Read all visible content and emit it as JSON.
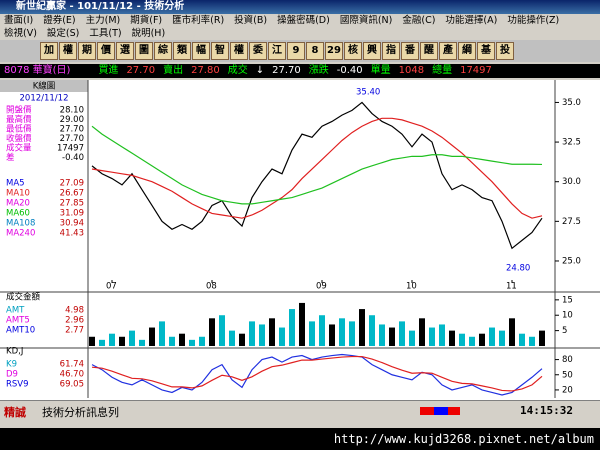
{
  "title_bar": "新世紀贏家 - 101/11/12 - 技術分析",
  "menu": [
    [
      "畫面(I)",
      "證券(E)",
      "主力(M)",
      "期貨(F)",
      "匯市利率(R)",
      "投資(B)",
      "操盤密碼(D)",
      "國際資訊(N)",
      "金融(C)",
      "功能選擇(A)",
      "功能操作(Z)"
    ],
    [
      "檢視(V)",
      "設定(S)",
      "工具(T)",
      "說明(H)"
    ]
  ],
  "toolbar": [
    "加",
    "權",
    "期",
    "價",
    "選",
    "圖",
    "綜",
    "類",
    "幅",
    "智",
    "權",
    "委",
    "江",
    "9",
    "8",
    "29",
    "核",
    "興",
    "指",
    "番",
    "醒",
    "產",
    "綱",
    "基",
    "投"
  ],
  "quote": {
    "symbol": "8078 華寶(日)",
    "bid_label": "買進",
    "bid": "27.70",
    "ask_label": "賣出",
    "ask": "27.80",
    "last_label": "成交",
    "arrow": "↓",
    "last": "27.70",
    "change_label": "漲跌",
    "change": "-0.40",
    "lot_label": "單量",
    "lot": "1048",
    "vol_label": "總量",
    "vol": "17497"
  },
  "info_panel": {
    "title": "K線圖",
    "date": "2012/11/12",
    "rows": [
      [
        "開盤價",
        "28.10"
      ],
      [
        "最高價",
        "29.00"
      ],
      [
        "最低價",
        "27.70"
      ],
      [
        "收盤價",
        "27.70"
      ],
      [
        "成交量",
        "17497"
      ],
      [
        "差",
        "-0.40"
      ]
    ],
    "ma": [
      [
        "MA5",
        "27.09"
      ],
      [
        "MA10",
        "26.67"
      ],
      [
        "MA20",
        "27.85"
      ],
      [
        "MA60",
        "31.09"
      ],
      [
        "MA108",
        "30.94"
      ],
      [
        "MA240",
        "41.43"
      ]
    ]
  },
  "chart_data": [
    {
      "type": "line",
      "categories": [
        null,
        null,
        "07",
        null,
        null,
        null,
        null,
        null,
        null,
        null,
        null,
        null,
        "08",
        null,
        null,
        null,
        null,
        null,
        null,
        null,
        null,
        null,
        null,
        "09",
        null,
        null,
        null,
        null,
        null,
        null,
        null,
        null,
        "10",
        null,
        null,
        null,
        null,
        null,
        null,
        null,
        null,
        null,
        "11",
        null,
        null,
        null
      ],
      "series": [
        {
          "color": "#000000",
          "values": [
            31.0,
            30.5,
            30.2,
            29.8,
            30.5,
            29.5,
            28.5,
            27.5,
            27.0,
            27.3,
            27.0,
            27.5,
            28.5,
            28.8,
            27.8,
            27.2,
            29.0,
            30.0,
            30.8,
            30.5,
            32.0,
            33.0,
            32.8,
            33.5,
            33.8,
            34.2,
            34.5,
            35.0,
            34.3,
            33.8,
            33.5,
            33.0,
            32.2,
            33.0,
            32.5,
            30.5,
            29.5,
            29.8,
            29.5,
            29.0,
            28.8,
            27.5,
            25.8,
            26.3,
            26.8,
            27.7
          ]
        },
        {
          "color": "#e02020",
          "values": [
            30.8,
            30.7,
            30.6,
            30.5,
            30.4,
            30.2,
            30.0,
            29.7,
            29.4,
            29.0,
            28.6,
            28.3,
            28.0,
            27.9,
            27.8,
            27.7,
            27.9,
            28.2,
            28.6,
            29.0,
            29.5,
            30.2,
            30.8,
            31.4,
            32.0,
            32.6,
            33.1,
            33.5,
            33.8,
            34.0,
            34.0,
            33.9,
            33.7,
            33.5,
            33.2,
            32.8,
            32.3,
            31.8,
            31.2,
            30.6,
            30.0,
            29.3,
            28.6,
            28.0,
            27.7,
            27.85
          ]
        },
        {
          "color": "#20c020",
          "values": [
            33.5,
            33.0,
            32.6,
            32.2,
            31.8,
            31.4,
            31.0,
            30.6,
            30.2,
            29.8,
            29.5,
            29.2,
            29.0,
            28.8,
            28.7,
            28.6,
            28.6,
            28.7,
            28.8,
            28.9,
            29.0,
            29.2,
            29.4,
            29.6,
            29.9,
            30.2,
            30.5,
            30.8,
            31.0,
            31.2,
            31.4,
            31.5,
            31.6,
            31.6,
            31.7,
            31.7,
            31.6,
            31.6,
            31.5,
            31.4,
            31.3,
            31.2,
            31.1,
            31.1,
            31.1,
            31.09
          ]
        }
      ],
      "ylim": [
        23.8,
        36.1
      ],
      "yticks": [
        {
          "value": 25,
          "label": "25.0"
        },
        {
          "value": 27.5,
          "label": "27.5"
        },
        {
          "value": 30,
          "label": "30.0"
        },
        {
          "value": 32.5,
          "label": "32.5"
        },
        {
          "value": 35,
          "label": "35.0"
        }
      ],
      "annotations": [
        {
          "text": "35.40",
          "value": 35.4,
          "index": 27
        },
        {
          "text": "24.80",
          "value": 24.8,
          "index": 42
        }
      ]
    },
    {
      "type": "bar",
      "label": "成交金額",
      "legend": [
        [
          "AMT",
          "4.98"
        ],
        [
          "AMT5",
          "2.96"
        ],
        [
          "AMT10",
          "2.77"
        ]
      ],
      "color": "#00b8c8",
      "values": [
        3,
        2,
        4,
        3,
        5,
        2,
        6,
        8,
        3,
        4,
        2,
        3,
        9,
        10,
        5,
        4,
        8,
        7,
        9,
        6,
        12,
        14,
        8,
        10,
        7,
        9,
        8,
        12,
        10,
        7,
        6,
        8,
        5,
        9,
        6,
        7,
        5,
        4,
        3,
        4,
        6,
        5,
        9,
        4,
        3,
        5
      ],
      "ylim": [
        0,
        15.6
      ],
      "yticks": [
        5,
        10,
        15
      ]
    },
    {
      "type": "line",
      "label": "KD,J",
      "legend": [
        [
          "K9",
          "61.74"
        ],
        [
          "D9",
          "46.70"
        ],
        [
          "RSV9",
          "69.05"
        ]
      ],
      "series": [
        {
          "color": "#2030e0",
          "values": [
            70,
            60,
            45,
            35,
            30,
            40,
            30,
            20,
            15,
            25,
            20,
            35,
            60,
            70,
            40,
            25,
            60,
            80,
            85,
            75,
            85,
            88,
            80,
            85,
            88,
            90,
            88,
            85,
            70,
            60,
            50,
            45,
            40,
            55,
            50,
            30,
            20,
            25,
            30,
            20,
            15,
            10,
            15,
            30,
            45,
            62
          ]
        },
        {
          "color": "#e02020",
          "values": [
            65,
            63,
            57,
            50,
            43,
            42,
            38,
            32,
            26,
            26,
            24,
            28,
            39,
            49,
            46,
            39,
            46,
            57,
            66,
            69,
            74,
            79,
            79,
            81,
            83,
            85,
            86,
            86,
            81,
            74,
            66,
            59,
            53,
            54,
            53,
            45,
            37,
            33,
            32,
            28,
            24,
            19,
            18,
            22,
            30,
            47
          ]
        }
      ],
      "ylim": [
        8,
        95
      ],
      "yticks": [
        20,
        50,
        80
      ]
    }
  ],
  "status": {
    "brand": "精誠",
    "message": "技術分析訊息列",
    "time": "14:15:32"
  },
  "watermark": "http://www.kujd3268.pixnet.net/album"
}
